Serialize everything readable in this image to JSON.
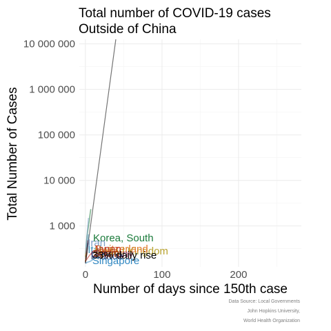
{
  "chart_data": {
    "type": "line",
    "title": "Total number of COVID-19 cases",
    "subtitle": "Outside of China",
    "xlabel": "Number of days since 150th case",
    "ylabel": "Total Number of Cases",
    "xlim": [
      -8,
      282
    ],
    "ylim_log10": [
      2.1,
      7.1
    ],
    "log_y": true,
    "grid": true,
    "x_ticks": [
      {
        "value": 0,
        "label": "0"
      },
      {
        "value": 100,
        "label": "100"
      },
      {
        "value": 200,
        "label": "200"
      }
    ],
    "y_ticks": [
      {
        "value": 1000,
        "label": "1 000"
      },
      {
        "value": 10000,
        "label": "10 000"
      },
      {
        "value": 100000,
        "label": "100 000"
      },
      {
        "value": 1000000,
        "label": "1 000 000"
      },
      {
        "value": 10000000,
        "label": "10 000 000"
      }
    ],
    "caption": [
      "Data Source: Local Governments",
      "John Hopkins University,",
      "World Health Organization"
    ],
    "series": [
      {
        "name": "Korea, South",
        "color": "#1a7a3a",
        "x": [
          0,
          1,
          2,
          3,
          4,
          5,
          6,
          7
        ],
        "y": [
          204,
          346,
          602,
          763,
          977,
          1261,
          1766,
          2337
        ]
      },
      {
        "name": "Iran",
        "color": "#7d9fc9",
        "x": [
          0,
          1,
          2,
          3,
          4
        ],
        "y": [
          245,
          388,
          593,
          978,
          1501
        ]
      },
      {
        "name": "Italy",
        "color": "#3a8fb7",
        "x": [
          0,
          1,
          2,
          3,
          4
        ],
        "y": [
          155,
          229,
          322,
          453,
          655
        ]
      },
      {
        "name": "United Kingdom",
        "color": "#b8a22e",
        "x": [
          0,
          1,
          2
        ],
        "y": [
          163,
          206,
          273
        ]
      },
      {
        "name": "Switzerland",
        "color": "#e07b2a",
        "x": [
          0,
          1,
          2
        ],
        "y": [
          214,
          268,
          337
        ]
      },
      {
        "name": "Japan",
        "color": "#c0392b",
        "x": [
          0,
          2,
          4,
          6,
          8,
          10,
          12
        ],
        "y": [
          170,
          186,
          210,
          230,
          254,
          274,
          293
        ]
      },
      {
        "name": "Germany",
        "color": "#8e3a59",
        "x": [
          0,
          1,
          2,
          3
        ],
        "y": [
          157,
          196,
          262,
          482
        ]
      },
      {
        "name": "France",
        "color": "#2c3e7a",
        "x": [
          0,
          1,
          2,
          3
        ],
        "y": [
          191,
          212,
          285,
          423
        ]
      },
      {
        "name": "Singapore",
        "color": "#2e86c1",
        "x": [
          0,
          3,
          6,
          9,
          12,
          15
        ],
        "y": [
          150,
          160,
          166,
          178,
          200,
          212
        ]
      },
      {
        "name": "Spain",
        "color": "#a04000",
        "x": [
          0,
          1,
          2
        ],
        "y": [
          165,
          222,
          259
        ]
      },
      {
        "name": "33% daily rise",
        "color": "#000000",
        "x": [
          0,
          10,
          20,
          30,
          40
        ],
        "y": [
          150,
          2608,
          45357,
          788700,
          13713000
        ]
      }
    ]
  }
}
